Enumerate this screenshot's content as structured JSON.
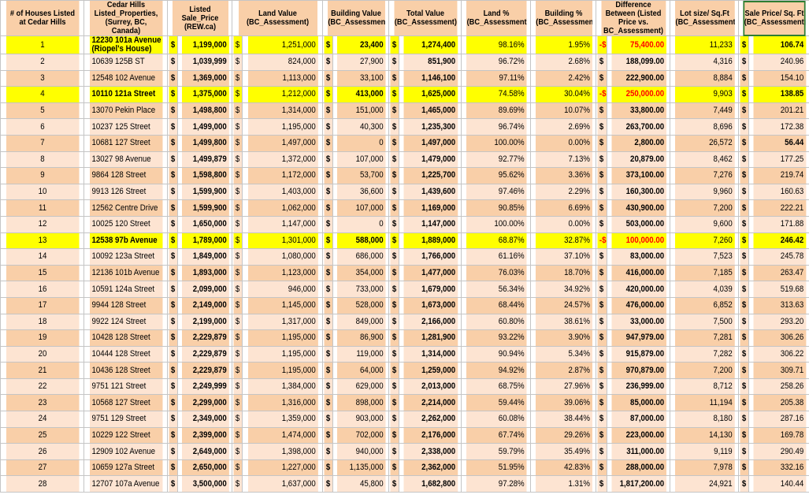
{
  "headers": {
    "num": "# of Houses Listed at Cedar Hills",
    "address": "Cedar Hills Listed_Properties, (Surrey, BC, Canada)",
    "listed": "Listed Sale_Price (REW.ca)",
    "land": "Land Value (BC_Assessment)",
    "building": "Building Value (BC_Assessment)",
    "total": "Total Value (BC_Assessment)",
    "land_pct": "Land % (BC_Assessment)",
    "building_pct": "Building % (BC_Assessment)",
    "difference": "Difference Between (Listed Price vs. BC_Assessment)",
    "lot": "Lot size/ Sq.Ft (BC_Assessment)",
    "price_sqft": "Sale Price/ Sq. Ft (BC_Assessment)"
  },
  "currency_symbol": "$",
  "rows": [
    {
      "num": "1",
      "address": "12230 101a Avenue",
      "address_line2": "(Riopel's House)",
      "listed": "1,199,000",
      "land": "1,251,000",
      "building": "23,400",
      "total": "1,274,400",
      "land_pct": "98.16%",
      "building_pct": "1.95%",
      "diff_sign": "-$",
      "difference": "75,400.00",
      "lot": "11,233",
      "price_sqft": "106.74",
      "highlight": true,
      "negative": true
    },
    {
      "num": "2",
      "address": "10639 125B ST",
      "listed": "1,039,999",
      "land": "824,000",
      "building": "27,900",
      "total": "851,900",
      "land_pct": "96.72%",
      "building_pct": "2.68%",
      "diff_sign": "$",
      "difference": "188,099.00",
      "lot": "4,316",
      "price_sqft": "240.96"
    },
    {
      "num": "3",
      "address": "12548 102 Avenue",
      "listed": "1,369,000",
      "land": "1,113,000",
      "building": "33,100",
      "total": "1,146,100",
      "land_pct": "97.11%",
      "building_pct": "2.42%",
      "diff_sign": "$",
      "difference": "222,900.00",
      "lot": "8,884",
      "price_sqft": "154.10"
    },
    {
      "num": "4",
      "address": "10110 121a Street",
      "listed": "1,375,000",
      "land": "1,212,000",
      "building": "413,000",
      "total": "1,625,000",
      "land_pct": "74.58%",
      "building_pct": "30.04%",
      "diff_sign": "-$",
      "difference": "250,000.00",
      "lot": "9,903",
      "price_sqft": "138.85",
      "highlight": true,
      "negative": true
    },
    {
      "num": "5",
      "address": "13070 Pekin Place",
      "listed": "1,498,800",
      "land": "1,314,000",
      "building": "151,000",
      "total": "1,465,000",
      "land_pct": "89.69%",
      "building_pct": "10.07%",
      "diff_sign": "$",
      "difference": "33,800.00",
      "lot": "7,449",
      "price_sqft": "201.21"
    },
    {
      "num": "6",
      "address": "10237 125 Street",
      "listed": "1,499,000",
      "land": "1,195,000",
      "building": "40,300",
      "total": "1,235,300",
      "land_pct": "96.74%",
      "building_pct": "2.69%",
      "diff_sign": "$",
      "difference": "263,700.00",
      "lot": "8,696",
      "price_sqft": "172.38"
    },
    {
      "num": "7",
      "address": "10681 127 Street",
      "listed": "1,499,800",
      "land": "1,497,000",
      "building": "0",
      "total": "1,497,000",
      "land_pct": "100.00%",
      "building_pct": "0.00%",
      "diff_sign": "$",
      "difference": "2,800.00",
      "lot": "26,572",
      "price_sqft": "56.44",
      "bold_price_sqft": true
    },
    {
      "num": "8",
      "address": "13027 98 Avenue",
      "listed": "1,499,879",
      "land": "1,372,000",
      "building": "107,000",
      "total": "1,479,000",
      "land_pct": "92.77%",
      "building_pct": "7.13%",
      "diff_sign": "$",
      "difference": "20,879.00",
      "lot": "8,462",
      "price_sqft": "177.25"
    },
    {
      "num": "9",
      "address": "9864 128 Street",
      "listed": "1,598,800",
      "land": "1,172,000",
      "building": "53,700",
      "total": "1,225,700",
      "land_pct": "95.62%",
      "building_pct": "3.36%",
      "diff_sign": "$",
      "difference": "373,100.00",
      "lot": "7,276",
      "price_sqft": "219.74"
    },
    {
      "num": "10",
      "address": "9913 126 Street",
      "listed": "1,599,900",
      "land": "1,403,000",
      "building": "36,600",
      "total": "1,439,600",
      "land_pct": "97.46%",
      "building_pct": "2.29%",
      "diff_sign": "$",
      "difference": "160,300.00",
      "lot": "9,960",
      "price_sqft": "160.63"
    },
    {
      "num": "11",
      "address": "12562 Centre Drive",
      "listed": "1,599,900",
      "land": "1,062,000",
      "building": "107,000",
      "total": "1,169,000",
      "land_pct": "90.85%",
      "building_pct": "6.69%",
      "diff_sign": "$",
      "difference": "430,900.00",
      "lot": "7,200",
      "price_sqft": "222.21"
    },
    {
      "num": "12",
      "address": "10025 120 Street",
      "listed": "1,650,000",
      "land": "1,147,000",
      "building": "0",
      "total": "1,147,000",
      "land_pct": "100.00%",
      "building_pct": "0.00%",
      "diff_sign": "$",
      "difference": "503,000.00",
      "lot": "9,600",
      "price_sqft": "171.88"
    },
    {
      "num": "13",
      "address": "12538 97b Avenue",
      "listed": "1,789,000",
      "land": "1,301,000",
      "building": "588,000",
      "total": "1,889,000",
      "land_pct": "68.87%",
      "building_pct": "32.87%",
      "diff_sign": "-$",
      "difference": "100,000.00",
      "lot": "7,260",
      "price_sqft": "246.42",
      "highlight": true,
      "negative": true
    },
    {
      "num": "14",
      "address": "10092 123a Street",
      "listed": "1,849,000",
      "land": "1,080,000",
      "building": "686,000",
      "total": "1,766,000",
      "land_pct": "61.16%",
      "building_pct": "37.10%",
      "diff_sign": "$",
      "difference": "83,000.00",
      "lot": "7,523",
      "price_sqft": "245.78"
    },
    {
      "num": "15",
      "address": "12136 101b Avenue",
      "listed": "1,893,000",
      "land": "1,123,000",
      "building": "354,000",
      "total": "1,477,000",
      "land_pct": "76.03%",
      "building_pct": "18.70%",
      "diff_sign": "$",
      "difference": "416,000.00",
      "lot": "7,185",
      "price_sqft": "263.47"
    },
    {
      "num": "16",
      "address": "10591 124a Street",
      "listed": "2,099,000",
      "land": "946,000",
      "building": "733,000",
      "total": "1,679,000",
      "land_pct": "56.34%",
      "building_pct": "34.92%",
      "diff_sign": "$",
      "difference": "420,000.00",
      "lot": "4,039",
      "price_sqft": "519.68"
    },
    {
      "num": "17",
      "address": "9944 128 Street",
      "listed": "2,149,000",
      "land": "1,145,000",
      "building": "528,000",
      "total": "1,673,000",
      "land_pct": "68.44%",
      "building_pct": "24.57%",
      "diff_sign": "$",
      "difference": "476,000.00",
      "lot": "6,852",
      "price_sqft": "313.63"
    },
    {
      "num": "18",
      "address": "9922 124 Street",
      "listed": "2,199,000",
      "land": "1,317,000",
      "building": "849,000",
      "total": "2,166,000",
      "land_pct": "60.80%",
      "building_pct": "38.61%",
      "diff_sign": "$",
      "difference": "33,000.00",
      "lot": "7,500",
      "price_sqft": "293.20"
    },
    {
      "num": "19",
      "address": "10428 128 Street",
      "listed": "2,229,879",
      "land": "1,195,000",
      "building": "86,900",
      "total": "1,281,900",
      "land_pct": "93.22%",
      "building_pct": "3.90%",
      "diff_sign": "$",
      "difference": "947,979.00",
      "lot": "7,281",
      "price_sqft": "306.26"
    },
    {
      "num": "20",
      "address": "10444 128 Street",
      "listed": "2,229,879",
      "land": "1,195,000",
      "building": "119,000",
      "total": "1,314,000",
      "land_pct": "90.94%",
      "building_pct": "5.34%",
      "diff_sign": "$",
      "difference": "915,879.00",
      "lot": "7,282",
      "price_sqft": "306.22"
    },
    {
      "num": "21",
      "address": "10436 128 Street",
      "listed": "2,229,879",
      "land": "1,195,000",
      "building": "64,000",
      "total": "1,259,000",
      "land_pct": "94.92%",
      "building_pct": "2.87%",
      "diff_sign": "$",
      "difference": "970,879.00",
      "lot": "7,200",
      "price_sqft": "309.71"
    },
    {
      "num": "22",
      "address": "9751 121 Street",
      "listed": "2,249,999",
      "land": "1,384,000",
      "building": "629,000",
      "total": "2,013,000",
      "land_pct": "68.75%",
      "building_pct": "27.96%",
      "diff_sign": "$",
      "difference": "236,999.00",
      "lot": "8,712",
      "price_sqft": "258.26"
    },
    {
      "num": "23",
      "address": "10568 127 Street",
      "listed": "2,299,000",
      "land": "1,316,000",
      "building": "898,000",
      "total": "2,214,000",
      "land_pct": "59.44%",
      "building_pct": "39.06%",
      "diff_sign": "$",
      "difference": "85,000.00",
      "lot": "11,194",
      "price_sqft": "205.38"
    },
    {
      "num": "24",
      "address": "9751 129 Street",
      "listed": "2,349,000",
      "land": "1,359,000",
      "building": "903,000",
      "total": "2,262,000",
      "land_pct": "60.08%",
      "building_pct": "38.44%",
      "diff_sign": "$",
      "difference": "87,000.00",
      "lot": "8,180",
      "price_sqft": "287.16"
    },
    {
      "num": "25",
      "address": "10229 122 Street",
      "listed": "2,399,000",
      "land": "1,474,000",
      "building": "702,000",
      "total": "2,176,000",
      "land_pct": "67.74%",
      "building_pct": "29.26%",
      "diff_sign": "$",
      "difference": "223,000.00",
      "lot": "14,130",
      "price_sqft": "169.78"
    },
    {
      "num": "26",
      "address": "12909 102 Avenue",
      "listed": "2,649,000",
      "land": "1,398,000",
      "building": "940,000",
      "total": "2,338,000",
      "land_pct": "59.79%",
      "building_pct": "35.49%",
      "diff_sign": "$",
      "difference": "311,000.00",
      "lot": "9,119",
      "price_sqft": "290.49"
    },
    {
      "num": "27",
      "address": "10659 127a Street",
      "listed": "2,650,000",
      "land": "1,227,000",
      "building": "1,135,000",
      "total": "2,362,000",
      "land_pct": "51.95%",
      "building_pct": "42.83%",
      "diff_sign": "$",
      "difference": "288,000.00",
      "lot": "7,978",
      "price_sqft": "332.16"
    },
    {
      "num": "28",
      "address": "12707 107a Avenue",
      "listed": "3,500,000",
      "land": "1,637,000",
      "building": "45,800",
      "total": "1,682,800",
      "land_pct": "97.28%",
      "building_pct": "1.31%",
      "diff_sign": "$",
      "difference": "1,817,200.00",
      "lot": "24,921",
      "price_sqft": "140.44"
    }
  ]
}
